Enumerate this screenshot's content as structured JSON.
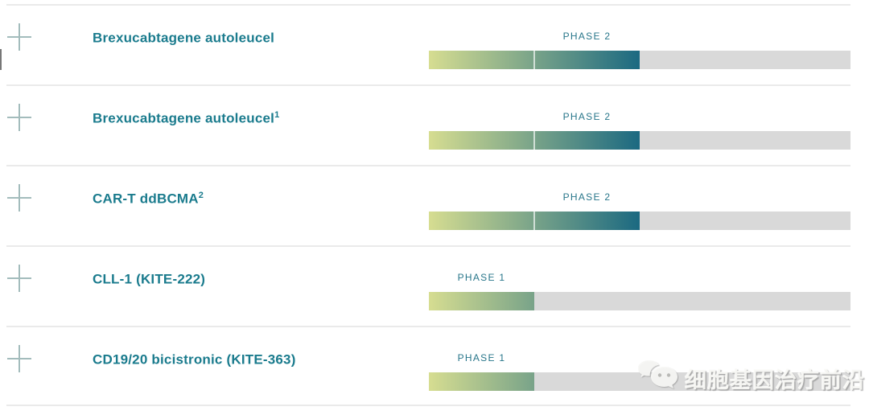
{
  "chart_data": {
    "type": "bar",
    "orientation": "horizontal",
    "title": "",
    "categories": [
      "Brexucabtagene autoleucel",
      "Brexucabtagene autoleucel(1)",
      "CAR-T ddBCMA(2)",
      "CLL-1 (KITE-222)",
      "CD19/20 bicistronic (KITE-363)"
    ],
    "values": [
      2,
      2,
      2,
      1,
      1
    ],
    "value_labels": [
      "PHASE 2",
      "PHASE 2",
      "PHASE 2",
      "PHASE 1",
      "PHASE 1"
    ],
    "xlim": [
      0,
      4
    ],
    "grid": false,
    "legend": false,
    "note": "bar fill length encodes clinical phase across 4 pipeline segments"
  },
  "rows": [
    {
      "name": "Brexucabtagene autoleucel",
      "sup": "",
      "phase_label": "PHASE 2",
      "phase": 2
    },
    {
      "name": "Brexucabtagene autoleucel",
      "sup": "1",
      "phase_label": "PHASE 2",
      "phase": 2
    },
    {
      "name": "CAR-T ddBCMA",
      "sup": "2",
      "phase_label": "PHASE 2",
      "phase": 2
    },
    {
      "name": "CLL-1 (KITE-222)",
      "sup": "",
      "phase_label": "PHASE 1",
      "phase": 1
    },
    {
      "name": "CD19/20 bicistronic (KITE-363)",
      "sup": "",
      "phase_label": "PHASE 1",
      "phase": 1
    }
  ],
  "watermark": {
    "label": "细胞基因治疗前沿",
    "icon": "wechat-logo-icon"
  },
  "icons": {
    "row_expander": "plus-icon"
  },
  "colors": {
    "drug": "#1a7b8d",
    "phase": "#28768a",
    "grad_start": "#d6dd91",
    "grad_end": "#1b6981",
    "track": "#d9d9d9",
    "divider": "#eaeaea",
    "plus": "#a3bcbc"
  }
}
